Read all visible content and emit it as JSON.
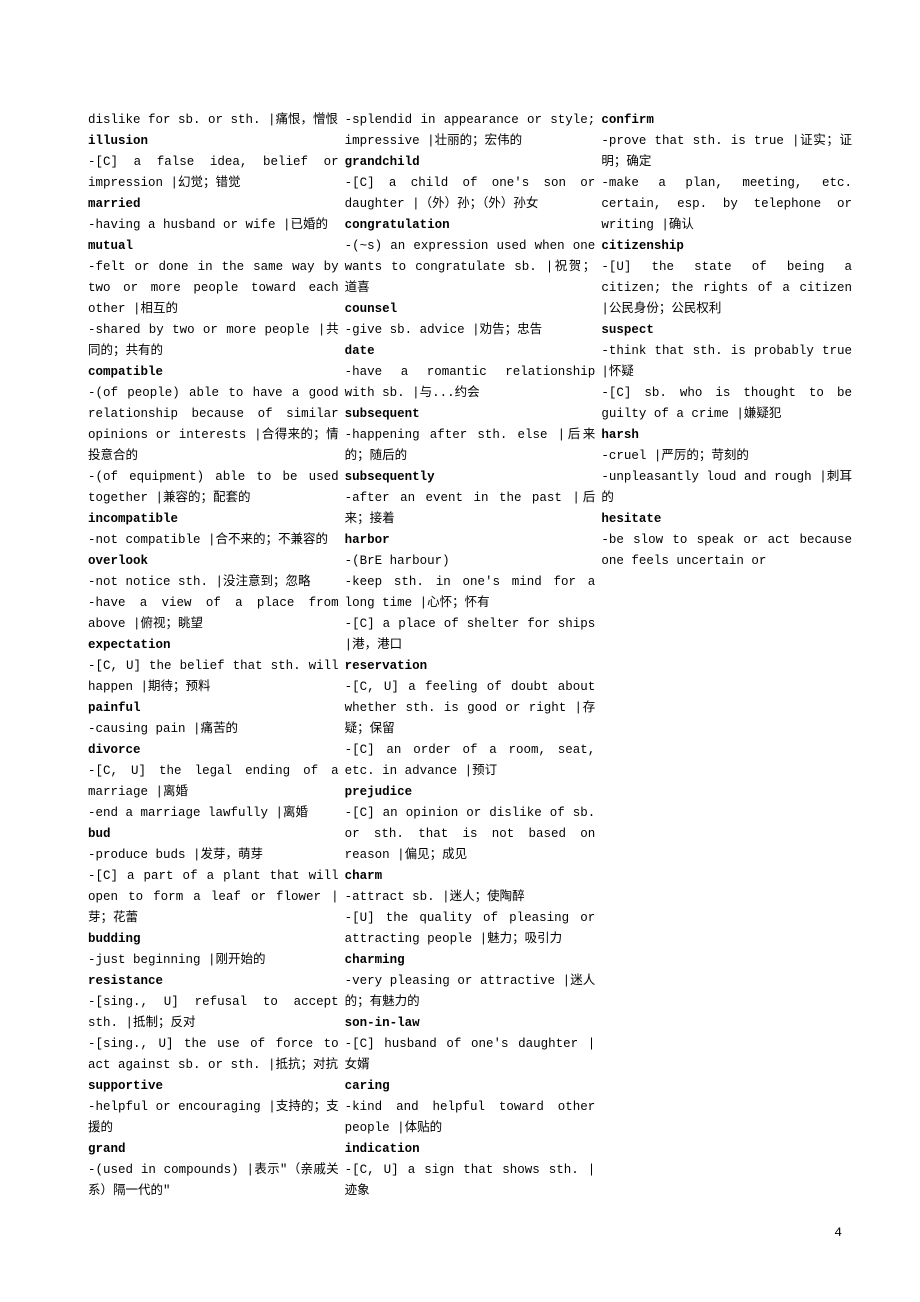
{
  "page_number": "4",
  "entries": [
    {
      "word": null,
      "defs": [
        "dislike for sb. or sth. |痛恨，憎恨"
      ]
    },
    {
      "word": "illusion",
      "defs": [
        "-[C] a false idea, belief or impression |幻觉；错觉"
      ]
    },
    {
      "word": "married",
      "defs": [
        "-having a husband or wife |已婚的"
      ]
    },
    {
      "word": "mutual",
      "defs": [
        "-felt or done in the same way by two or more people toward each other |相互的",
        "-shared by two or more people |共同的；共有的"
      ]
    },
    {
      "word": "compatible",
      "defs": [
        "-(of people) able to have a good relationship because of similar opinions or interests |合得来的；情投意合的",
        "-(of equipment) able to be used together |兼容的；配套的"
      ]
    },
    {
      "word": "incompatible",
      "defs": [
        "-not compatible |合不来的；不兼容的"
      ]
    },
    {
      "word": "overlook",
      "defs": [
        "-not notice sth. |没注意到；忽略",
        "-have a view of a place from above |俯视；眺望"
      ]
    },
    {
      "word": "expectation",
      "defs": [
        "-[C, U] the belief that sth. will happen |期待；预料"
      ]
    },
    {
      "word": "painful",
      "defs": [
        "-causing pain |痛苦的"
      ]
    },
    {
      "word": "divorce",
      "defs": [
        "-[C, U] the legal ending of a marriage |离婚",
        "-end a marriage lawfully |离婚"
      ]
    },
    {
      "word": "bud",
      "defs": [
        "-produce buds |发芽，萌芽",
        "-[C] a part of a plant that will open to form a leaf or flower |芽；花蕾"
      ]
    },
    {
      "word": "budding",
      "defs": [
        "-just beginning |刚开始的"
      ]
    },
    {
      "word": "resistance",
      "defs": [
        "-[sing., U] refusal to accept sth. |抵制；反对",
        "-[sing., U] the use of force to act against sb. or sth. |抵抗；对抗"
      ]
    },
    {
      "word": "supportive",
      "defs": [
        "-helpful or encouraging |支持的；支援的"
      ]
    },
    {
      "word": "grand",
      "defs": [
        "-(used in compounds) |表示\"（亲戚关系）隔一代的\"",
        "-splendid in appearance or style; impressive |壮丽的；宏伟的"
      ]
    },
    {
      "word": "grandchild",
      "defs": [
        "-[C] a child of one's son or daughter |（外）孙；（外）孙女"
      ]
    },
    {
      "word": "congratulation",
      "defs": [
        "-(~s) an expression used when one wants to congratulate sb. |祝贺；道喜"
      ]
    },
    {
      "word": "counsel",
      "defs": [
        "-give sb. advice |劝告；忠告"
      ]
    },
    {
      "word": "date",
      "defs": [
        "-have a romantic relationship with sb. |与...约会"
      ]
    },
    {
      "word": "subsequent",
      "defs": [
        "-happening after sth. else |后来的；随后的"
      ]
    },
    {
      "word": "subsequently",
      "defs": [
        "-after an event in the past |后来；接着"
      ]
    },
    {
      "word": "harbor",
      "defs": [
        "-(BrE harbour)",
        "-keep sth. in one's mind for a long time |心怀；怀有",
        "-[C] a place of shelter for ships |港，港口"
      ]
    },
    {
      "word": "reservation",
      "defs": [
        "-[C, U] a feeling of doubt about whether sth. is good or right |存疑；保留",
        "-[C] an order of a room, seat, etc. in advance |预订"
      ]
    },
    {
      "word": "prejudice",
      "defs": [
        "-[C] an opinion or dislike of sb. or sth. that is not based on reason |偏见；成见"
      ]
    },
    {
      "word": "charm",
      "defs": [
        "-attract sb. |迷人；使陶醉",
        "-[U] the quality of pleasing or attracting people |魅力；吸引力"
      ]
    },
    {
      "word": "charming",
      "defs": [
        "-very pleasing or attractive |迷人的；有魅力的"
      ]
    },
    {
      "word": "son-in-law",
      "defs": [
        "-[C] husband of one's daughter |女婿"
      ]
    },
    {
      "word": "caring",
      "defs": [
        "-kind and helpful toward other people |体贴的"
      ]
    },
    {
      "word": "indication",
      "defs": [
        "-[C, U] a sign that shows sth. |迹象"
      ]
    },
    {
      "word": "confirm",
      "defs": [
        "-prove that sth. is true |证实；证明；确定",
        "-make a plan, meeting, etc. certain, esp. by telephone or writing |确认"
      ]
    },
    {
      "word": "citizenship",
      "defs": [
        "-[U] the state of being a citizen; the rights of a citizen |公民身份；公民权利"
      ]
    },
    {
      "word": "suspect",
      "defs": [
        "-think that sth. is probably true |怀疑",
        "-[C] sb. who is thought to be guilty of a crime |嫌疑犯"
      ]
    },
    {
      "word": "harsh",
      "defs": [
        "-cruel |严厉的；苛刻的",
        "-unpleasantly loud and rough |刺耳的"
      ]
    },
    {
      "word": "hesitate",
      "defs": [
        "-be slow to speak or act because one feels uncertain or"
      ]
    }
  ]
}
